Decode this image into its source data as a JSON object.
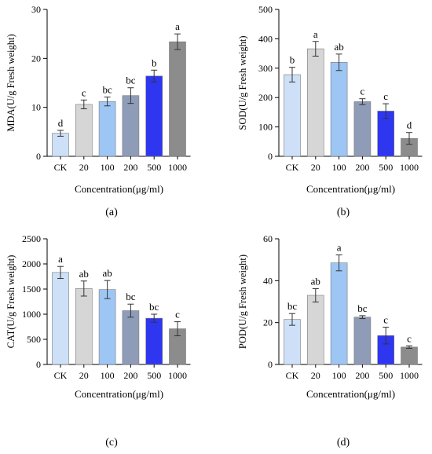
{
  "chart_data": [
    {
      "type": "bar",
      "caption": "(a)",
      "ylabel": "MDA(U/g Fresh weight)",
      "xlabel": "Concentration(μg/ml)",
      "categories": [
        "CK",
        "20",
        "100",
        "200",
        "500",
        "1000"
      ],
      "values": [
        4.7,
        10.6,
        11.2,
        12.4,
        16.4,
        23.4
      ],
      "errors": [
        0.6,
        0.9,
        0.9,
        1.6,
        1.2,
        1.6
      ],
      "letters": [
        "d",
        "c",
        "bc",
        "bc",
        "b",
        "a"
      ],
      "ylim": [
        0,
        30
      ],
      "yticks": [
        0,
        10,
        20,
        30
      ]
    },
    {
      "type": "bar",
      "caption": "(b)",
      "ylabel": "SOD(U/g Fresh weight)",
      "xlabel": "Concentration(μg/ml)",
      "categories": [
        "CK",
        "20",
        "100",
        "200",
        "500",
        "1000"
      ],
      "values": [
        278,
        366,
        320,
        186,
        154,
        61
      ],
      "errors": [
        25,
        25,
        28,
        10,
        25,
        20
      ],
      "letters": [
        "b",
        "a",
        "ab",
        "c",
        "c",
        "d"
      ],
      "ylim": [
        0,
        500
      ],
      "yticks": [
        0,
        100,
        200,
        300,
        400,
        500
      ]
    },
    {
      "type": "bar",
      "caption": "(c)",
      "ylabel": "CAT(U/g Fresh weight)",
      "xlabel": "Concentration(μg/ml)",
      "categories": [
        "CK",
        "20",
        "100",
        "200",
        "500",
        "1000"
      ],
      "values": [
        1830,
        1510,
        1490,
        1070,
        920,
        710
      ],
      "errors": [
        120,
        150,
        180,
        130,
        80,
        140
      ],
      "letters": [
        "a",
        "ab",
        "ab",
        "bc",
        "bc",
        "c"
      ],
      "ylim": [
        0,
        2500
      ],
      "yticks": [
        0,
        500,
        1000,
        1500,
        2000,
        2500
      ]
    },
    {
      "type": "bar",
      "caption": "(d)",
      "ylabel": "POD(U/g Fresh weight)",
      "xlabel": "Concentration(μg/ml)",
      "categories": [
        "CK",
        "20",
        "100",
        "200",
        "500",
        "1000"
      ],
      "values": [
        21.5,
        33,
        48.5,
        22.6,
        13.8,
        8.3
      ],
      "errors": [
        2.8,
        3.2,
        3.8,
        0.7,
        4.0,
        0.6
      ],
      "letters": [
        "bc",
        "ab",
        "a",
        "bc",
        "c",
        "c"
      ],
      "ylim": [
        0,
        60
      ],
      "yticks": [
        0,
        20,
        40,
        60
      ]
    }
  ],
  "colors": {
    "bars": [
      "#cde0f7",
      "#d6d6d6",
      "#9ec6f4",
      "#8f9cb8",
      "#2e36f0",
      "#8c8c8c"
    ]
  }
}
